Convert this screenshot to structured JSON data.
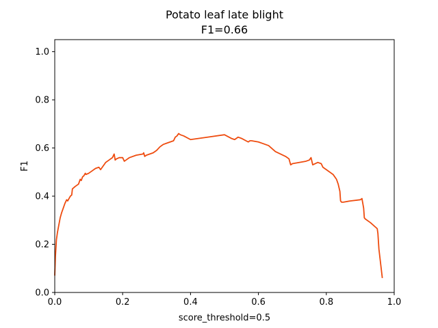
{
  "chart_data": {
    "type": "line",
    "title": "Potato leaf late blight",
    "subtitle": "F1=0.66",
    "xlabel": "score_threshold=0.5",
    "ylabel": "F1",
    "xlim": [
      0,
      1.0
    ],
    "ylim": [
      0,
      1.05
    ],
    "xticks": [
      "0.0",
      "0.2",
      "0.4",
      "0.6",
      "0.8",
      "1.0"
    ],
    "yticks": [
      "0.0",
      "0.2",
      "0.4",
      "0.6",
      "0.8",
      "1.0"
    ],
    "grid": false,
    "legend": "none",
    "series": [
      {
        "color": "#ee4b0e",
        "x": [
          0.0,
          0.002,
          0.005,
          0.008,
          0.012,
          0.016,
          0.02,
          0.025,
          0.03,
          0.035,
          0.038,
          0.042,
          0.046,
          0.05,
          0.052,
          0.056,
          0.06,
          0.065,
          0.07,
          0.075,
          0.078,
          0.082,
          0.086,
          0.09,
          0.092,
          0.1,
          0.11,
          0.12,
          0.13,
          0.135,
          0.14,
          0.15,
          0.155,
          0.16,
          0.17,
          0.175,
          0.178,
          0.182,
          0.19,
          0.2,
          0.205,
          0.21,
          0.22,
          0.24,
          0.26,
          0.262,
          0.265,
          0.27,
          0.28,
          0.29,
          0.3,
          0.31,
          0.32,
          0.33,
          0.35,
          0.355,
          0.36,
          0.365,
          0.37,
          0.38,
          0.4,
          0.45,
          0.5,
          0.52,
          0.53,
          0.54,
          0.55,
          0.57,
          0.575,
          0.58,
          0.6,
          0.63,
          0.65,
          0.68,
          0.69,
          0.695,
          0.7,
          0.72,
          0.74,
          0.75,
          0.755,
          0.76,
          0.775,
          0.785,
          0.79,
          0.8,
          0.82,
          0.83,
          0.835,
          0.84,
          0.842,
          0.845,
          0.85,
          0.87,
          0.9,
          0.905,
          0.91,
          0.912,
          0.915,
          0.93,
          0.95,
          0.952,
          0.955,
          0.96,
          0.965
        ],
        "y": [
          0.07,
          0.15,
          0.22,
          0.25,
          0.28,
          0.31,
          0.33,
          0.35,
          0.37,
          0.385,
          0.38,
          0.39,
          0.4,
          0.405,
          0.43,
          0.435,
          0.44,
          0.445,
          0.45,
          0.47,
          0.465,
          0.48,
          0.485,
          0.495,
          0.49,
          0.495,
          0.505,
          0.515,
          0.52,
          0.51,
          0.52,
          0.54,
          0.545,
          0.55,
          0.56,
          0.575,
          0.55,
          0.555,
          0.56,
          0.56,
          0.545,
          0.55,
          0.56,
          0.57,
          0.575,
          0.58,
          0.565,
          0.57,
          0.575,
          0.58,
          0.59,
          0.605,
          0.615,
          0.62,
          0.63,
          0.645,
          0.65,
          0.66,
          0.655,
          0.65,
          0.635,
          0.645,
          0.655,
          0.64,
          0.635,
          0.645,
          0.64,
          0.625,
          0.63,
          0.63,
          0.625,
          0.61,
          0.585,
          0.565,
          0.555,
          0.53,
          0.535,
          0.54,
          0.545,
          0.55,
          0.56,
          0.53,
          0.54,
          0.535,
          0.52,
          0.51,
          0.49,
          0.47,
          0.45,
          0.42,
          0.38,
          0.375,
          0.375,
          0.38,
          0.385,
          0.39,
          0.35,
          0.31,
          0.305,
          0.29,
          0.265,
          0.245,
          0.18,
          0.12,
          0.06
        ]
      }
    ]
  }
}
